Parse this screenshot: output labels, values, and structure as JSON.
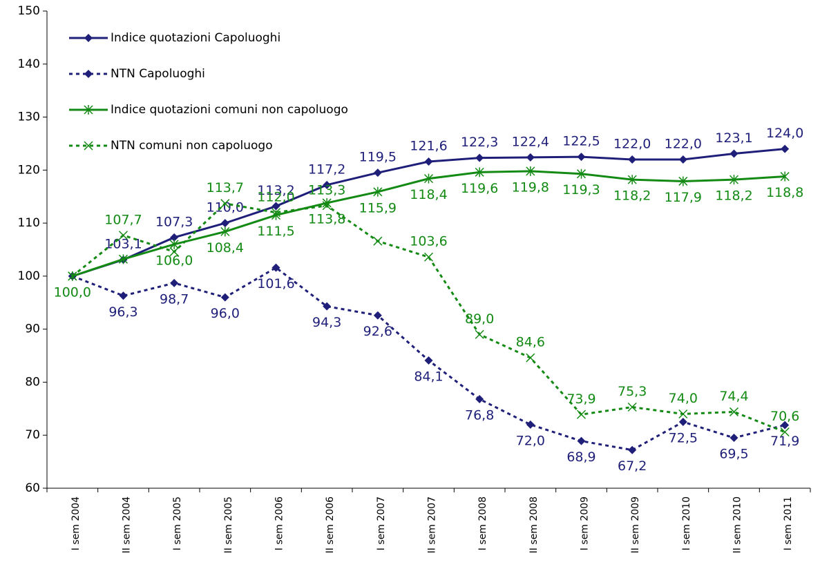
{
  "chart_data": {
    "type": "line",
    "categories": [
      "I sem 2004",
      "II sem 2004",
      "I sem 2005",
      "II sem 2005",
      "I sem 2006",
      "II sem 2006",
      "I sem 2007",
      "II sem 2007",
      "I sem 2008",
      "II sem 2008",
      "I sem 2009",
      "II sem 2009",
      "I sem 2010",
      "II sem 2010",
      "I sem 2011"
    ],
    "series": [
      {
        "name": "Indice quotazioni Capoluoghi",
        "color": "#1f1f7a",
        "dash": "solid",
        "marker": "diamond",
        "label_side": "above",
        "values": [
          100.0,
          103.1,
          107.3,
          110.0,
          113.2,
          117.2,
          119.5,
          121.6,
          122.3,
          122.4,
          122.5,
          122.0,
          122.0,
          123.1,
          124.0
        ],
        "value_labels": [
          null,
          "103,1",
          "107,3",
          "110,0",
          "113,2",
          "117,2",
          "119,5",
          "121,6",
          "122,3",
          "122,4",
          "122,5",
          "122,0",
          "122,0",
          "123,1",
          "124,0"
        ]
      },
      {
        "name": "NTN Capoluoghi",
        "color": "#1f1f7a",
        "dash": "dotted",
        "marker": "diamond",
        "label_side": "below",
        "values": [
          100.0,
          96.3,
          98.7,
          96.0,
          101.6,
          94.3,
          92.6,
          84.1,
          76.8,
          72.0,
          68.9,
          67.2,
          72.5,
          69.5,
          71.9
        ],
        "value_labels": [
          null,
          "96,3",
          "98,7",
          "96,0",
          "101,6",
          "94,3",
          "92,6",
          "84,1",
          "76,8",
          "72,0",
          "68,9",
          "67,2",
          "72,5",
          "69,5",
          "71,9"
        ]
      },
      {
        "name": "Indice quotazioni comuni non capoluogo",
        "color": "#138a13",
        "dash": "solid",
        "marker": "asterisk",
        "label_side": "below",
        "values": [
          100.0,
          103.2,
          106.0,
          108.4,
          111.5,
          113.8,
          115.9,
          118.4,
          119.6,
          119.8,
          119.3,
          118.2,
          117.9,
          118.2,
          118.8
        ],
        "value_labels": [
          "100,0",
          null,
          "106,0",
          "108,4",
          "111,5",
          "113,8",
          "115,9",
          "118,4",
          "119,6",
          "119,8",
          "119,3",
          "118,2",
          "117,9",
          "118,2",
          "118,8"
        ]
      },
      {
        "name": "NTN comuni non capoluogo",
        "color": "#138a13",
        "dash": "dotted",
        "marker": "x",
        "label_side": "above",
        "values": [
          100.0,
          107.7,
          104.6,
          113.7,
          112.0,
          113.3,
          106.6,
          103.6,
          89.0,
          84.6,
          73.9,
          75.3,
          74.0,
          74.4,
          70.6
        ],
        "value_labels": [
          null,
          "107,7",
          null,
          "113,7",
          "112,0",
          "113,3",
          null,
          "103,6",
          "89,0",
          "84,6",
          "73,9",
          "75,3",
          "74,0",
          "74,4",
          "70,6"
        ]
      }
    ],
    "ylim": [
      60,
      150
    ],
    "yticks": [
      60,
      70,
      80,
      90,
      100,
      110,
      120,
      130,
      140,
      150
    ],
    "grid": false,
    "legend": "upper left"
  }
}
